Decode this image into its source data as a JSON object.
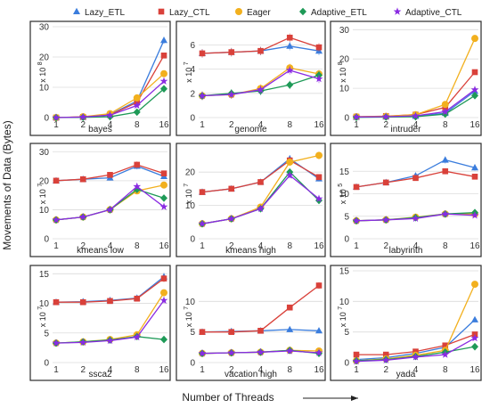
{
  "figure": {
    "ylabel": "Movements of Data (Bytes)",
    "xlabel": "Number of Threads",
    "arrow_icon": "right-arrow-icon",
    "legend": [
      {
        "name": "Lazy_ETL",
        "color": "#3b7ddd",
        "marker": "triangle"
      },
      {
        "name": "Lazy_CTL",
        "color": "#d9413a",
        "marker": "square"
      },
      {
        "name": "Eager",
        "color": "#f2b01e",
        "marker": "circle"
      },
      {
        "name": "Adaptive_ETL",
        "color": "#1e9a57",
        "marker": "diamond"
      },
      {
        "name": "Adaptive_CTL",
        "color": "#8a2be2",
        "marker": "star"
      }
    ]
  },
  "chart_data": [
    {
      "type": "line",
      "title": "bayes",
      "scale_label": "x 10",
      "scale_exp": "8",
      "categories": [
        "1",
        "2",
        "4",
        "8",
        "16"
      ],
      "ylim": [
        0,
        30
      ],
      "yticks": [
        0,
        10,
        20,
        30
      ],
      "grid": true,
      "series": [
        {
          "name": "Lazy_ETL",
          "values": [
            0,
            0.2,
            1.0,
            5.5,
            25.5
          ]
        },
        {
          "name": "Lazy_CTL",
          "values": [
            0,
            0.2,
            0.9,
            5.0,
            20.5
          ]
        },
        {
          "name": "Eager",
          "values": [
            0,
            0.3,
            1.3,
            6.5,
            14.5
          ]
        },
        {
          "name": "Adaptive_ETL",
          "values": [
            0,
            0.1,
            0.3,
            1.8,
            9.5
          ]
        },
        {
          "name": "Adaptive_CTL",
          "values": [
            0,
            0.2,
            0.8,
            4.0,
            12.0
          ]
        }
      ]
    },
    {
      "type": "line",
      "title": "genome",
      "scale_label": "x 10",
      "scale_exp": "7",
      "categories": [
        "1",
        "2",
        "4",
        "8",
        "16"
      ],
      "ylim": [
        0,
        7.5
      ],
      "yticks": [
        0,
        2,
        4,
        6
      ],
      "grid": true,
      "series": [
        {
          "name": "Lazy_ETL",
          "values": [
            5.3,
            5.4,
            5.5,
            5.9,
            5.5
          ]
        },
        {
          "name": "Lazy_CTL",
          "values": [
            5.3,
            5.4,
            5.5,
            6.6,
            5.8
          ]
        },
        {
          "name": "Eager",
          "values": [
            1.8,
            1.9,
            2.4,
            4.1,
            3.6
          ]
        },
        {
          "name": "Adaptive_ETL",
          "values": [
            1.8,
            2.0,
            2.2,
            2.7,
            3.5
          ]
        },
        {
          "name": "Adaptive_CTL",
          "values": [
            1.8,
            1.9,
            2.3,
            3.9,
            3.2
          ]
        }
      ]
    },
    {
      "type": "line",
      "title": "intruder",
      "scale_label": "x 10",
      "scale_exp": "8",
      "categories": [
        "1",
        "2",
        "4",
        "8",
        "16"
      ],
      "ylim": [
        0,
        31
      ],
      "yticks": [
        0,
        10,
        20,
        30
      ],
      "grid": true,
      "series": [
        {
          "name": "Lazy_ETL",
          "values": [
            0.2,
            0.3,
            0.5,
            1.5,
            9.0
          ]
        },
        {
          "name": "Lazy_CTL",
          "values": [
            0.3,
            0.5,
            1.0,
            3.5,
            15.5
          ]
        },
        {
          "name": "Eager",
          "values": [
            0.3,
            0.4,
            1.0,
            4.5,
            27.0
          ]
        },
        {
          "name": "Adaptive_ETL",
          "values": [
            0.1,
            0.2,
            0.3,
            1.2,
            7.5
          ]
        },
        {
          "name": "Adaptive_CTL",
          "values": [
            0.2,
            0.3,
            0.6,
            2.0,
            9.5
          ]
        }
      ]
    },
    {
      "type": "line",
      "title": "kmeans low",
      "scale_label": "x 10",
      "scale_exp": "7",
      "categories": [
        "1",
        "2",
        "4",
        "8",
        "16"
      ],
      "ylim": [
        0,
        31
      ],
      "yticks": [
        0,
        10,
        20,
        30
      ],
      "grid": true,
      "series": [
        {
          "name": "Lazy_ETL",
          "values": [
            20.0,
            20.5,
            21.0,
            25.0,
            21.5
          ]
        },
        {
          "name": "Lazy_CTL",
          "values": [
            20.0,
            20.5,
            22.0,
            25.5,
            22.5
          ]
        },
        {
          "name": "Eager",
          "values": [
            6.5,
            7.5,
            10.0,
            16.5,
            18.5
          ]
        },
        {
          "name": "Adaptive_ETL",
          "values": [
            6.5,
            7.5,
            10.0,
            17.0,
            14.0
          ]
        },
        {
          "name": "Adaptive_CTL",
          "values": [
            6.5,
            7.5,
            10.0,
            18.0,
            11.0
          ]
        }
      ]
    },
    {
      "type": "line",
      "title": "kmeans high",
      "scale_label": "x 10",
      "scale_exp": "7",
      "categories": [
        "1",
        "2",
        "4",
        "8",
        "16"
      ],
      "ylim": [
        0,
        27
      ],
      "yticks": [
        0,
        10,
        20
      ],
      "grid": true,
      "series": [
        {
          "name": "Lazy_ETL",
          "values": [
            14.0,
            15.0,
            17.0,
            24.0,
            18.0
          ]
        },
        {
          "name": "Lazy_CTL",
          "values": [
            14.0,
            15.0,
            17.0,
            23.5,
            18.5
          ]
        },
        {
          "name": "Eager",
          "values": [
            4.5,
            6.0,
            9.5,
            23.0,
            25.0
          ]
        },
        {
          "name": "Adaptive_ETL",
          "values": [
            4.5,
            6.0,
            9.0,
            20.0,
            11.5
          ]
        },
        {
          "name": "Adaptive_CTL",
          "values": [
            4.5,
            6.0,
            9.0,
            19.0,
            12.0
          ]
        }
      ]
    },
    {
      "type": "line",
      "title": "labyrinth",
      "scale_label": "x 10",
      "scale_exp": "5",
      "categories": [
        "1",
        "2",
        "4",
        "8",
        "16"
      ],
      "ylim": [
        0,
        20
      ],
      "yticks": [
        0,
        5,
        10,
        15
      ],
      "grid": true,
      "series": [
        {
          "name": "Lazy_ETL",
          "values": [
            11.5,
            12.5,
            14.0,
            17.5,
            15.8
          ]
        },
        {
          "name": "Lazy_CTL",
          "values": [
            11.5,
            12.5,
            13.5,
            15.0,
            13.8
          ]
        },
        {
          "name": "Eager",
          "values": [
            4.0,
            4.2,
            4.8,
            5.5,
            5.5
          ]
        },
        {
          "name": "Adaptive_ETL",
          "values": [
            4.0,
            4.2,
            4.7,
            5.5,
            5.8
          ]
        },
        {
          "name": "Adaptive_CTL",
          "values": [
            4.0,
            4.2,
            4.5,
            5.5,
            5.2
          ]
        }
      ]
    },
    {
      "type": "line",
      "title": "ssca2",
      "scale_label": "x 10",
      "scale_exp": "7",
      "categories": [
        "1",
        "2",
        "4",
        "8",
        "16"
      ],
      "ylim": [
        0,
        15.5
      ],
      "yticks": [
        0,
        5,
        10,
        15
      ],
      "grid": true,
      "series": [
        {
          "name": "Lazy_ETL",
          "values": [
            10.2,
            10.3,
            10.5,
            10.9,
            14.5
          ]
        },
        {
          "name": "Lazy_CTL",
          "values": [
            10.2,
            10.2,
            10.4,
            10.8,
            14.2
          ]
        },
        {
          "name": "Eager",
          "values": [
            3.3,
            3.5,
            3.9,
            4.7,
            11.8
          ]
        },
        {
          "name": "Adaptive_ETL",
          "values": [
            3.3,
            3.5,
            3.8,
            4.4,
            3.9
          ]
        },
        {
          "name": "Adaptive_CTL",
          "values": [
            3.3,
            3.4,
            3.7,
            4.3,
            10.5
          ]
        }
      ]
    },
    {
      "type": "line",
      "title": "vacation high",
      "scale_label": "x 10",
      "scale_exp": "7",
      "categories": [
        "1",
        "2",
        "4",
        "8",
        "16"
      ],
      "ylim": [
        0,
        15
      ],
      "yticks": [
        0,
        5,
        10
      ],
      "grid": true,
      "series": [
        {
          "name": "Lazy_ETL",
          "values": [
            5.0,
            5.1,
            5.2,
            5.4,
            5.2
          ]
        },
        {
          "name": "Lazy_CTL",
          "values": [
            5.0,
            5.0,
            5.2,
            9.0,
            12.6
          ]
        },
        {
          "name": "Eager",
          "values": [
            1.5,
            1.6,
            1.7,
            2.0,
            1.9
          ]
        },
        {
          "name": "Adaptive_ETL",
          "values": [
            1.5,
            1.6,
            1.7,
            2.0,
            1.5
          ]
        },
        {
          "name": "Adaptive_CTL",
          "values": [
            1.5,
            1.6,
            1.7,
            1.9,
            1.6
          ]
        }
      ]
    },
    {
      "type": "line",
      "title": "yada",
      "scale_label": "x 10",
      "scale_exp": "7",
      "categories": [
        "1",
        "2",
        "4",
        "8",
        "16"
      ],
      "ylim": [
        0,
        15
      ],
      "yticks": [
        0,
        5,
        10,
        15
      ],
      "grid": true,
      "series": [
        {
          "name": "Lazy_ETL",
          "values": [
            0.5,
            0.8,
            1.5,
            2.5,
            7.0
          ]
        },
        {
          "name": "Lazy_CTL",
          "values": [
            1.3,
            1.3,
            1.8,
            2.8,
            4.6
          ]
        },
        {
          "name": "Eager",
          "values": [
            0.3,
            0.6,
            1.2,
            2.0,
            12.8
          ]
        },
        {
          "name": "Adaptive_ETL",
          "values": [
            0.3,
            0.5,
            1.0,
            1.7,
            2.6
          ]
        },
        {
          "name": "Adaptive_CTL",
          "values": [
            0.2,
            0.4,
            0.9,
            1.3,
            4.0
          ]
        }
      ]
    }
  ]
}
